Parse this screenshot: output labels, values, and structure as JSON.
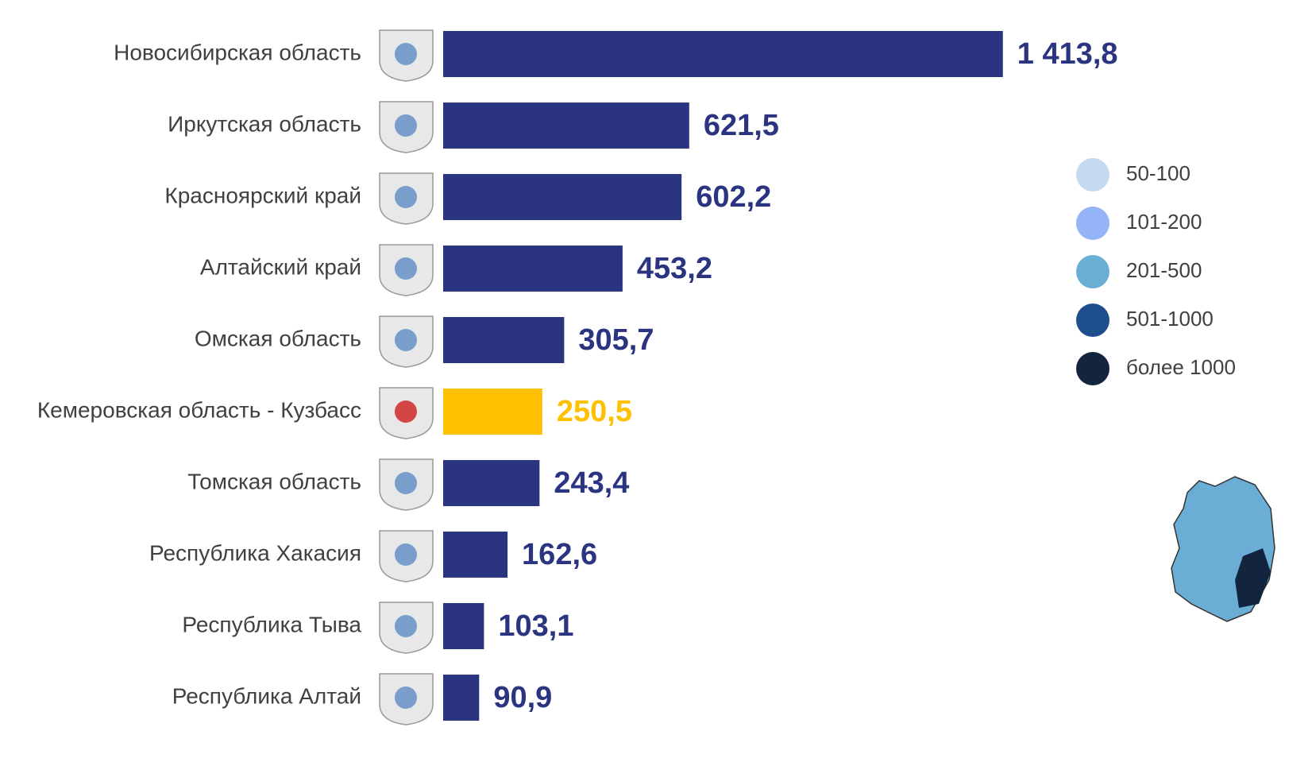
{
  "chart_data": {
    "type": "bar",
    "orientation": "horizontal",
    "categories": [
      "Новосибирская область",
      "Иркутская область",
      "Красноярский край",
      "Алтайский край",
      "Омская область",
      "Кемеровская область - Кузбасс",
      "Томская область",
      "Республика Хакасия",
      "Республика Тыва",
      "Республика Алтай"
    ],
    "values": [
      1413.8,
      621.5,
      602.2,
      453.2,
      305.7,
      250.5,
      243.4,
      162.6,
      103.1,
      90.9
    ],
    "value_labels": [
      "1 413,8",
      "621,5",
      "602,2",
      "453,2",
      "305,7",
      "250,5",
      "243,4",
      "162,6",
      "103,1",
      "90,9"
    ],
    "colors": [
      "#2b3480",
      "#2b3480",
      "#2b3480",
      "#2b3480",
      "#2b3480",
      "#ffc000",
      "#2b3480",
      "#2b3480",
      "#2b3480",
      "#2b3480"
    ],
    "xlim": [
      0,
      2000
    ],
    "map_legend": {
      "labels": [
        "50-100",
        "101-200",
        "201-500",
        "501-1000",
        "более 1000"
      ],
      "colors": [
        "#c5d9f1",
        "#95b3f7",
        "#6aaed6",
        "#1f4e8c",
        "#13243f"
      ]
    }
  }
}
